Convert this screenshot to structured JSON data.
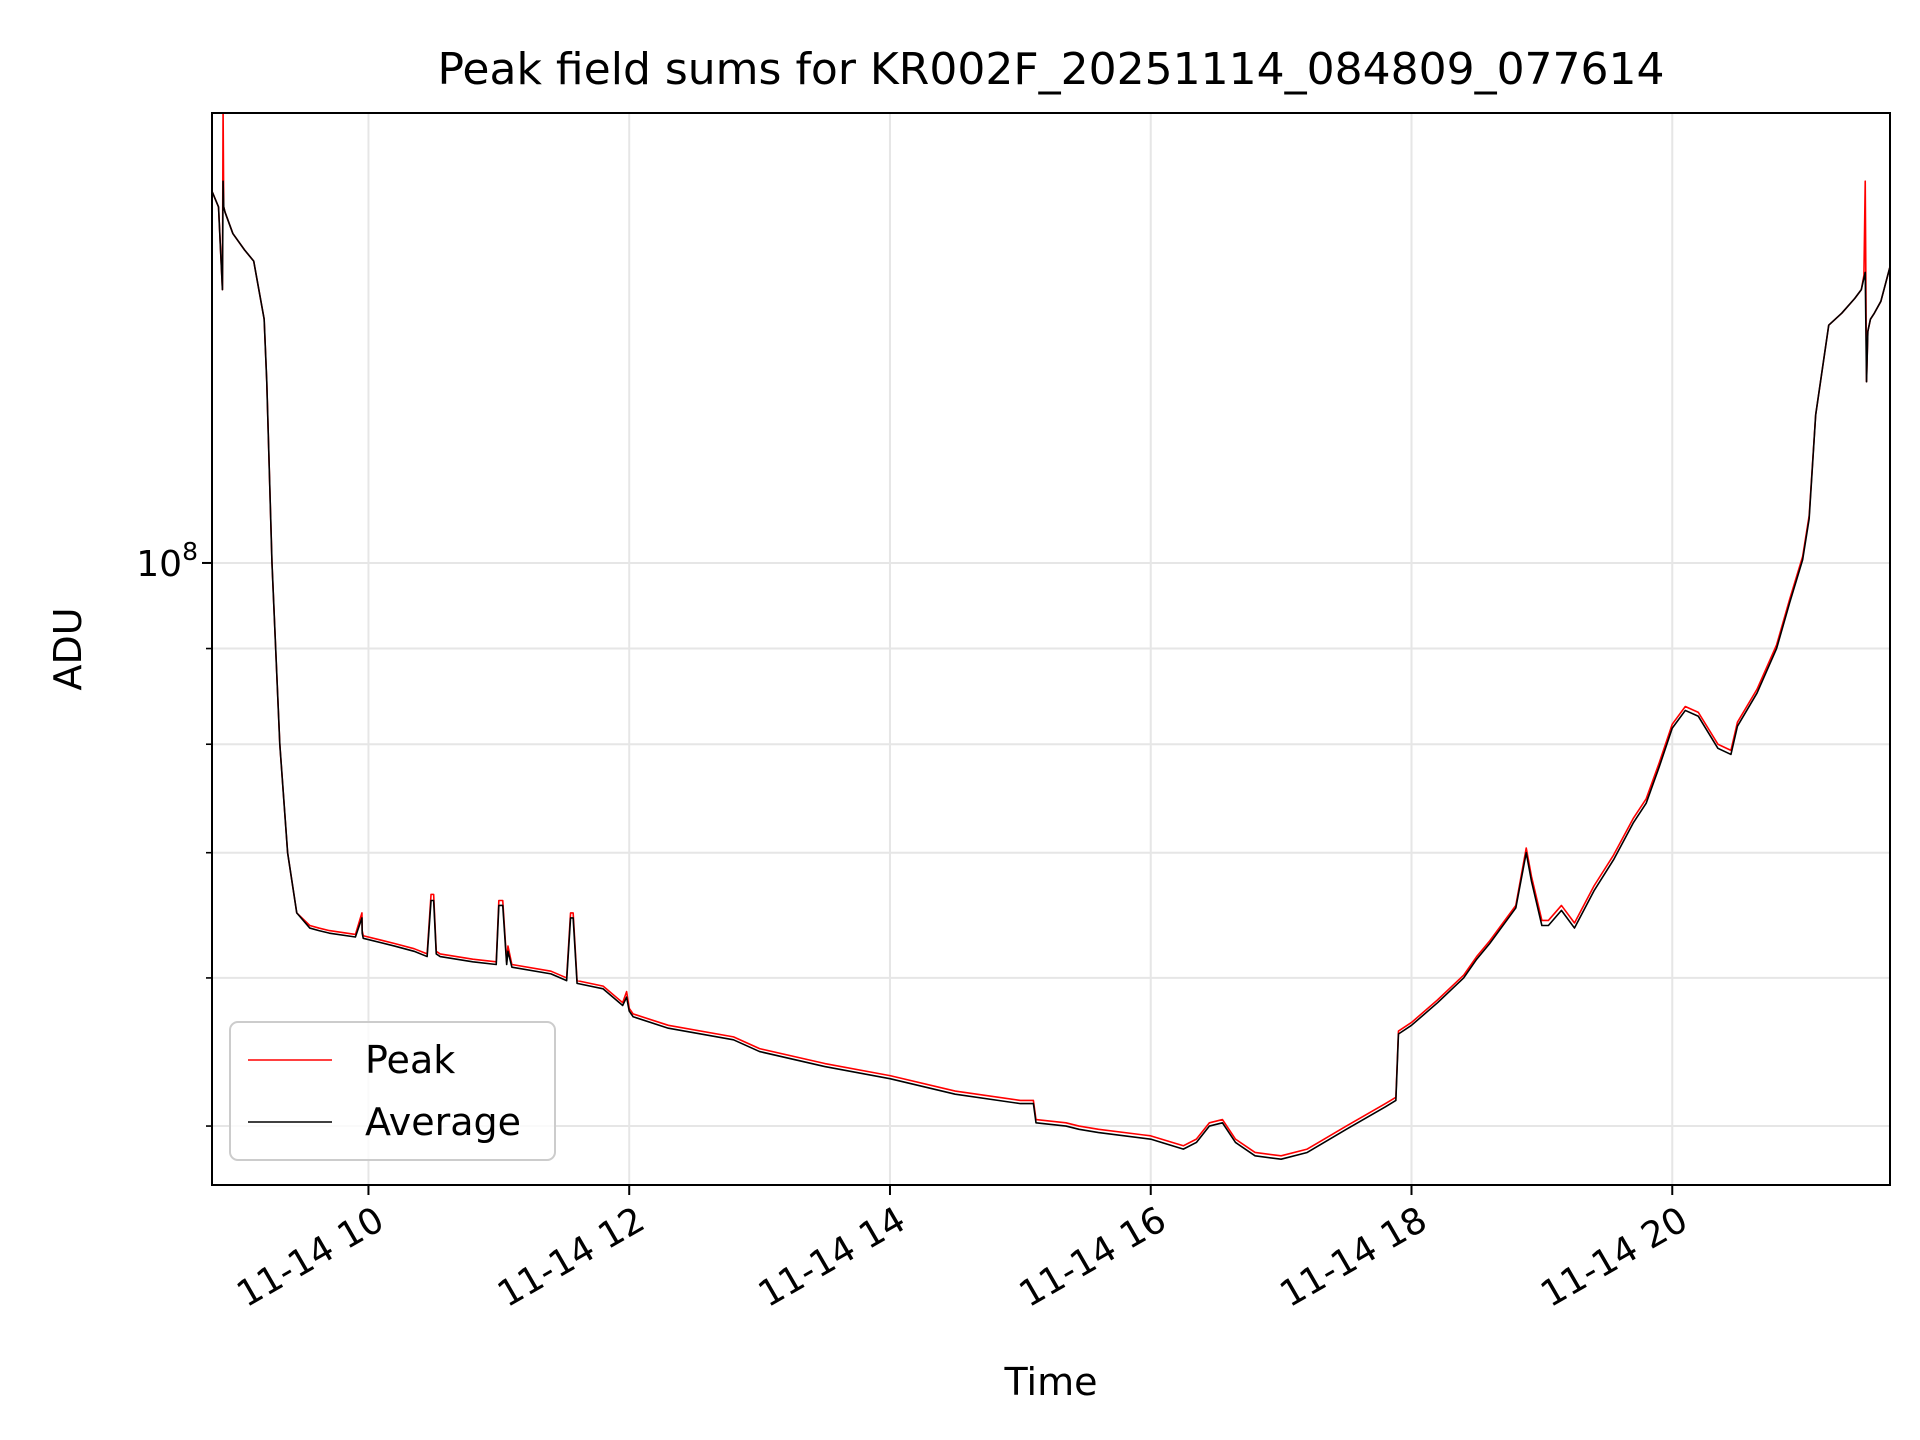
{
  "chart_data": {
    "type": "line",
    "title": "Peak field sums for KR002F_20251114_084809_077614",
    "xlabel": "Time",
    "ylabel": "ADU",
    "yscale": "log",
    "x_unit": "hours since 2025-11-14 00:00",
    "xlim": [
      8.8,
      21.67
    ],
    "ylim": [
      46500000,
      174000000
    ],
    "grid": true,
    "legend_position": "lower-left",
    "xticks": [
      {
        "value": 10,
        "label": "11-14 10"
      },
      {
        "value": 12,
        "label": "11-14 12"
      },
      {
        "value": 14,
        "label": "11-14 14"
      },
      {
        "value": 16,
        "label": "11-14 16"
      },
      {
        "value": 18,
        "label": "11-14 18"
      },
      {
        "value": 20,
        "label": "11-14 20"
      }
    ],
    "yticks_major": [
      {
        "value": 100000000,
        "base": "10",
        "exp": "8"
      }
    ],
    "yticks_minor": [
      50000000,
      60000000,
      70000000,
      80000000,
      90000000
    ],
    "series": [
      {
        "name": "Peak",
        "color": "#ff0000",
        "x": [
          8.8,
          8.85,
          8.88,
          8.885,
          8.89,
          8.9,
          8.96,
          9.05,
          9.12,
          9.2,
          9.22,
          9.26,
          9.32,
          9.38,
          9.45,
          9.55,
          9.62,
          9.7,
          9.9,
          9.95,
          9.952,
          9.96,
          10.2,
          10.35,
          10.45,
          10.48,
          10.5,
          10.52,
          10.55,
          10.8,
          10.98,
          11.0,
          11.03,
          11.06,
          11.07,
          11.1,
          11.4,
          11.52,
          11.55,
          11.57,
          11.6,
          11.8,
          11.95,
          11.98,
          12.0,
          12.03,
          12.3,
          12.8,
          13.0,
          13.5,
          14.0,
          14.5,
          15.0,
          15.1,
          15.12,
          15.35,
          15.45,
          15.6,
          16.0,
          16.25,
          16.35,
          16.45,
          16.55,
          16.65,
          16.8,
          17.0,
          17.2,
          17.5,
          17.8,
          17.88,
          17.9,
          18.0,
          18.2,
          18.4,
          18.5,
          18.6,
          18.8,
          18.88,
          18.92,
          19.0,
          19.05,
          19.15,
          19.25,
          19.4,
          19.55,
          19.7,
          19.8,
          19.9,
          20.0,
          20.1,
          20.2,
          20.35,
          20.45,
          20.5,
          20.65,
          20.8,
          20.9,
          21.0,
          21.05,
          21.1,
          21.2,
          21.3,
          21.4,
          21.45,
          21.47,
          21.48,
          21.49,
          21.5,
          21.52,
          21.55,
          21.6,
          21.67
        ],
        "y": [
          158000000,
          155000000,
          140000000,
          175000000,
          155000000,
          154000000,
          150000000,
          147000000,
          145000000,
          135000000,
          125000000,
          100000000,
          80000000,
          70000000,
          65000000,
          64000000,
          63800000,
          63600000,
          63300000,
          65000000,
          63600000,
          63200000,
          62600000,
          62200000,
          61800000,
          66500000,
          66500000,
          62000000,
          61800000,
          61400000,
          61200000,
          66000000,
          66000000,
          61200000,
          62400000,
          61000000,
          60500000,
          60000000,
          65000000,
          65000000,
          59800000,
          59400000,
          58200000,
          59000000,
          57800000,
          57400000,
          56600000,
          55800000,
          55000000,
          54000000,
          53200000,
          52200000,
          51600000,
          51600000,
          50400000,
          50200000,
          50000000,
          49800000,
          49400000,
          48800000,
          49200000,
          50200000,
          50400000,
          49200000,
          48400000,
          48200000,
          48600000,
          50000000,
          51400000,
          51800000,
          56200000,
          56800000,
          58400000,
          60200000,
          61600000,
          62800000,
          65600000,
          70400000,
          68000000,
          64400000,
          64400000,
          65600000,
          64200000,
          67200000,
          69800000,
          73000000,
          74800000,
          78200000,
          82000000,
          83800000,
          83200000,
          80000000,
          79400000,
          82200000,
          85600000,
          90400000,
          95600000,
          100800000,
          106000000,
          120000000,
          134000000,
          136000000,
          138500000,
          140000000,
          142500000,
          160000000,
          125000000,
          133000000,
          135000000,
          136000000,
          138000000,
          144000000
        ]
      },
      {
        "name": "Average",
        "color": "#000000",
        "x": [
          8.8,
          8.85,
          8.88,
          8.885,
          8.89,
          8.9,
          8.96,
          9.05,
          9.12,
          9.2,
          9.22,
          9.26,
          9.32,
          9.38,
          9.45,
          9.55,
          9.62,
          9.7,
          9.9,
          9.95,
          9.952,
          9.96,
          10.2,
          10.35,
          10.45,
          10.48,
          10.5,
          10.52,
          10.55,
          10.8,
          10.98,
          11.0,
          11.03,
          11.06,
          11.07,
          11.1,
          11.4,
          11.52,
          11.55,
          11.57,
          11.6,
          11.8,
          11.95,
          11.98,
          12.0,
          12.03,
          12.3,
          12.8,
          13.0,
          13.5,
          14.0,
          14.5,
          15.0,
          15.1,
          15.12,
          15.35,
          15.45,
          15.6,
          16.0,
          16.25,
          16.35,
          16.45,
          16.55,
          16.65,
          16.8,
          17.0,
          17.2,
          17.5,
          17.8,
          17.88,
          17.9,
          18.0,
          18.2,
          18.4,
          18.5,
          18.6,
          18.8,
          18.88,
          18.92,
          19.0,
          19.05,
          19.15,
          19.25,
          19.4,
          19.55,
          19.7,
          19.8,
          19.9,
          20.0,
          20.1,
          20.2,
          20.35,
          20.45,
          20.5,
          20.65,
          20.8,
          20.9,
          21.0,
          21.05,
          21.1,
          21.2,
          21.3,
          21.4,
          21.45,
          21.47,
          21.48,
          21.49,
          21.5,
          21.52,
          21.55,
          21.6,
          21.67
        ],
        "y": [
          158000000,
          155000000,
          140000000,
          160000000,
          155000000,
          154000000,
          150000000,
          147000000,
          145000000,
          135000000,
          125000000,
          100000000,
          80000000,
          70000000,
          65000000,
          63800000,
          63600000,
          63400000,
          63100000,
          64600000,
          63400000,
          63000000,
          62400000,
          62000000,
          61600000,
          66000000,
          66000000,
          61800000,
          61600000,
          61200000,
          61000000,
          65600000,
          65600000,
          61000000,
          62000000,
          60800000,
          60300000,
          59800000,
          64600000,
          64600000,
          59600000,
          59200000,
          58000000,
          58600000,
          57600000,
          57200000,
          56400000,
          55600000,
          54800000,
          53800000,
          53000000,
          52000000,
          51400000,
          51400000,
          50200000,
          50000000,
          49800000,
          49600000,
          49200000,
          48600000,
          49000000,
          50000000,
          50200000,
          49000000,
          48200000,
          48000000,
          48400000,
          49800000,
          51200000,
          51600000,
          56000000,
          56600000,
          58200000,
          60000000,
          61400000,
          62600000,
          65400000,
          70000000,
          67600000,
          64000000,
          64000000,
          65200000,
          63800000,
          66800000,
          69400000,
          72600000,
          74400000,
          77800000,
          81600000,
          83400000,
          82800000,
          79600000,
          79000000,
          81800000,
          85200000,
          90000000,
          95200000,
          100400000,
          105600000,
          120000000,
          134000000,
          136000000,
          138500000,
          140000000,
          142000000,
          143000000,
          125000000,
          133000000,
          135000000,
          136000000,
          138000000,
          144000000
        ]
      }
    ]
  }
}
